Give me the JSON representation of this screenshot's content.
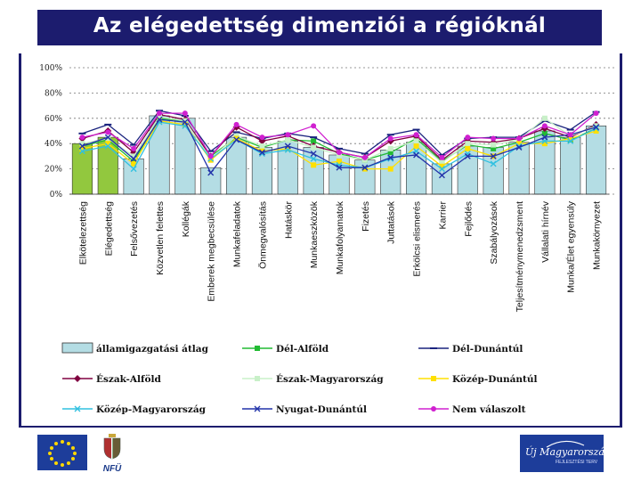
{
  "page": {
    "title": "Az elégedettség dimenziói a régióknál"
  },
  "logos": {
    "left_text": "NFÜ",
    "right_text": "Új Magyarország",
    "right_sub": "FEJLESZTÉSI TERV"
  },
  "colors": {
    "header_bg": "#1c1c6e",
    "bar_fill": "#b4dde4",
    "bar_fill_highlight": "#92c83e",
    "bar_stroke": "#333333"
  },
  "chart_data": {
    "type": "bar",
    "title": "",
    "xlabel": "",
    "ylabel": "",
    "ylim": [
      0,
      100
    ],
    "yticks": [
      "0%",
      "20%",
      "40%",
      "60%",
      "80%",
      "100%"
    ],
    "highlight_bars": [
      0,
      1
    ],
    "categories": [
      "Elkötelezettség",
      "Elégedettség",
      "Felsővezetés",
      "Közvetlen felettes",
      "Kollégák",
      "Emberek megbecsülése",
      "Munkafeladatok",
      "Önmegvalósítás",
      "Hatáskör",
      "Munkaeszközök",
      "Munkafolyamatok",
      "Fizetés",
      "Juttatások",
      "Erkölcsi elismerés",
      "Karrier",
      "Fejlődés",
      "Szabályozások",
      "Teljesítménymenedzsment",
      "Vállalati hírnév",
      "Munka/Élet egyensúly",
      "Munkakörnyezet"
    ],
    "series": [
      {
        "name": "államigazgatási átlag",
        "kind": "bar",
        "values": [
          40,
          45,
          28,
          62,
          60,
          21,
          45,
          37,
          42,
          37,
          31,
          27,
          35,
          41,
          24,
          38,
          37,
          41,
          50,
          45,
          54
        ]
      },
      {
        "name": "Dél-Alföld",
        "kind": "line",
        "color": "#22bb33",
        "marker": "square",
        "values": [
          38,
          43,
          26,
          60,
          58,
          30,
          45,
          37,
          43,
          42,
          32,
          27,
          33,
          44,
          26,
          39,
          36,
          41,
          48,
          43,
          52
        ]
      },
      {
        "name": "Dél-Dunántúl",
        "kind": "line",
        "color": "#1a237e",
        "marker": "dash",
        "values": [
          48,
          55,
          39,
          66,
          62,
          34,
          49,
          44,
          48,
          45,
          36,
          32,
          47,
          51,
          31,
          44,
          45,
          45,
          58,
          51,
          65
        ]
      },
      {
        "name": "Észak-Alföld",
        "kind": "line",
        "color": "#800040",
        "marker": "diamond",
        "values": [
          44,
          50,
          33,
          63,
          59,
          30,
          53,
          42,
          46,
          38,
          33,
          29,
          42,
          46,
          27,
          42,
          41,
          44,
          52,
          45,
          55
        ]
      },
      {
        "name": "Észak-Magyarország",
        "kind": "line",
        "color": "#c8f0c8",
        "marker": "square",
        "values": [
          40,
          44,
          30,
          61,
          58,
          28,
          46,
          38,
          43,
          37,
          31,
          27,
          36,
          42,
          25,
          40,
          39,
          43,
          60,
          46,
          54
        ]
      },
      {
        "name": "Közép-Dunántúl",
        "kind": "line",
        "color": "#ffe000",
        "marker": "square",
        "values": [
          36,
          40,
          24,
          58,
          55,
          27,
          44,
          34,
          36,
          23,
          26,
          20,
          20,
          38,
          22,
          36,
          30,
          40,
          40,
          44,
          50
        ]
      },
      {
        "name": "Közép-Magyarország",
        "kind": "line",
        "color": "#30c0e0",
        "marker": "x",
        "values": [
          34,
          38,
          20,
          57,
          54,
          28,
          43,
          32,
          35,
          28,
          23,
          21,
          28,
          34,
          20,
          32,
          24,
          38,
          42,
          42,
          52
        ]
      },
      {
        "name": "Nyugat-Dunántúl",
        "kind": "line",
        "color": "#2233aa",
        "marker": "x",
        "values": [
          38,
          45,
          28,
          59,
          57,
          17,
          43,
          33,
          38,
          32,
          21,
          21,
          29,
          31,
          15,
          30,
          30,
          37,
          45,
          47,
          53
        ]
      },
      {
        "name": "Nem válaszolt",
        "kind": "line",
        "color": "#d020d0",
        "marker": "circle",
        "values": [
          45,
          49,
          36,
          64,
          64,
          30,
          55,
          45,
          47,
          54,
          33,
          29,
          44,
          47,
          29,
          45,
          44,
          44,
          54,
          47,
          64
        ]
      }
    ]
  }
}
